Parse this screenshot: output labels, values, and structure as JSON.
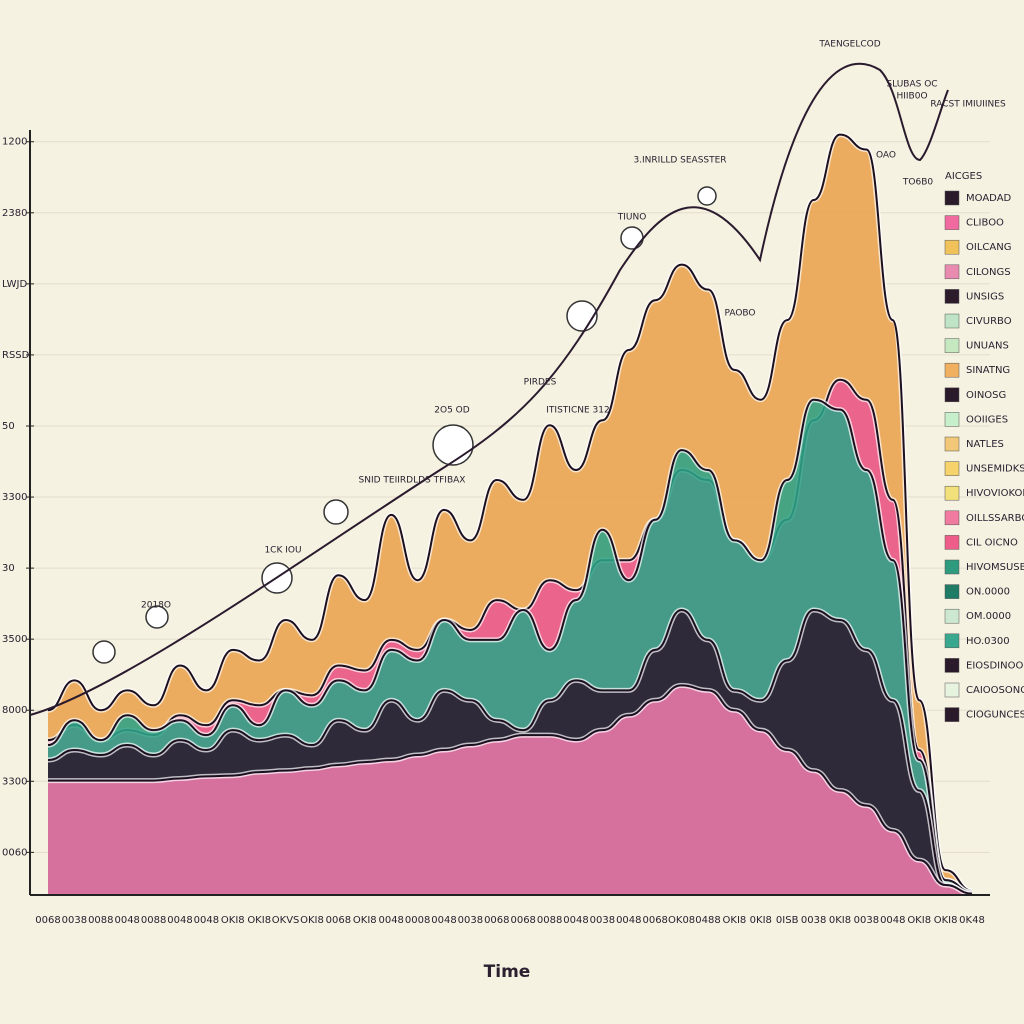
{
  "chart_data": {
    "type": "area",
    "x_label": "Time",
    "categories": [
      "0068",
      "0038",
      "0088",
      "0048",
      "0088",
      "0048",
      "0048",
      "OKI8",
      "OKI8",
      "OKVS",
      "OKI8",
      "0068",
      "OKI8",
      "0048",
      "0008",
      "0048",
      "0038",
      "0068",
      "0068",
      "0088",
      "0048",
      "0038",
      "0048",
      "0068",
      "OK08",
      "0488",
      "OKI8",
      "0KI8",
      "0ISB",
      "0038",
      "0KI8",
      "0038",
      "0048",
      "OKI8",
      "OKI8",
      "0K48"
    ],
    "ylim": [
      0.4,
      11.7
    ],
    "yticks": [
      {
        "value": 1,
        "label": "0060"
      },
      {
        "value": 2,
        "label": "3300"
      },
      {
        "value": 3,
        "label": "8000"
      },
      {
        "value": 4,
        "label": "3500"
      },
      {
        "value": 5,
        "label": "30"
      },
      {
        "value": 6,
        "label": "3300"
      },
      {
        "value": 7,
        "label": "50"
      },
      {
        "value": 8,
        "label": "RSSD"
      },
      {
        "value": 9,
        "label": "LWJD"
      },
      {
        "value": 10,
        "label": "2380"
      },
      {
        "value": 11,
        "label": "1200"
      }
    ],
    "grid": true,
    "series": [
      {
        "color": "#eaa24c",
        "values": [
          3.0,
          3.42,
          3.0,
          3.28,
          3.07,
          3.63,
          3.28,
          3.85,
          3.7,
          4.27,
          3.99,
          4.9,
          4.55,
          5.75,
          4.83,
          5.82,
          5.39,
          6.24,
          5.96,
          7.01,
          6.38,
          7.08,
          8.07,
          8.77,
          9.27,
          8.92,
          7.79,
          7.37,
          8.49,
          10.18,
          11.1,
          10.89,
          8.49,
          3.14,
          0.75,
          0.46
        ]
      },
      {
        "color": "#ea5a92",
        "values": [
          2.58,
          2.79,
          2.58,
          2.72,
          2.65,
          2.93,
          2.79,
          3.14,
          3.07,
          3.28,
          3.21,
          3.63,
          3.56,
          3.99,
          3.85,
          4.27,
          4.13,
          4.55,
          4.41,
          4.83,
          4.69,
          5.11,
          5.11,
          5.68,
          6.38,
          6.24,
          5.39,
          5.11,
          5.68,
          7.08,
          7.65,
          7.37,
          5.96,
          2.44,
          0.61,
          0.44
        ]
      },
      {
        "color": "#2fa387",
        "values": [
          2.51,
          2.86,
          2.58,
          2.93,
          2.72,
          2.86,
          2.65,
          3.07,
          2.79,
          3.28,
          3.07,
          3.42,
          3.28,
          3.85,
          3.7,
          4.27,
          3.99,
          3.99,
          4.41,
          3.85,
          4.55,
          5.54,
          4.83,
          5.68,
          6.66,
          6.38,
          5.39,
          5.11,
          6.24,
          7.37,
          7.23,
          6.38,
          5.11,
          2.3,
          0.61,
          0.44
        ]
      },
      {
        "color": "#2b1a2e",
        "values": [
          2.3,
          2.44,
          2.37,
          2.51,
          2.37,
          2.58,
          2.44,
          2.72,
          2.58,
          2.65,
          2.51,
          2.86,
          2.72,
          3.14,
          2.86,
          3.28,
          3.14,
          2.86,
          2.72,
          3.14,
          3.42,
          3.28,
          3.28,
          3.85,
          4.41,
          3.99,
          3.28,
          3.14,
          3.7,
          4.41,
          4.27,
          3.85,
          3.14,
          1.87,
          0.54,
          0.42
        ]
      },
      {
        "color": "#ee7bab",
        "values": [
          2.01,
          2.01,
          2.01,
          2.01,
          2.01,
          2.04,
          2.07,
          2.08,
          2.13,
          2.15,
          2.18,
          2.23,
          2.27,
          2.3,
          2.37,
          2.44,
          2.51,
          2.58,
          2.65,
          2.65,
          2.58,
          2.72,
          2.93,
          3.14,
          3.35,
          3.28,
          3.0,
          2.72,
          2.44,
          2.15,
          1.87,
          1.66,
          1.31,
          0.89,
          0.54,
          0.42
        ]
      }
    ],
    "legend_title": "AICGES",
    "legend": [
      {
        "name": "MOADAD",
        "color": "#2a1a2a"
      },
      {
        "name": "CLIBOO",
        "color": "#f06aa0"
      },
      {
        "name": "OILCANG",
        "color": "#f2c25a"
      },
      {
        "name": "CILONGS",
        "color": "#e98ab0"
      },
      {
        "name": "UNSIGS",
        "color": "#2b1b2b"
      },
      {
        "name": "CIVURBO",
        "color": "#bfe3c5"
      },
      {
        "name": "UNUANS",
        "color": "#c5e8c0"
      },
      {
        "name": "SINATNG",
        "color": "#f0b060"
      },
      {
        "name": "OINOSG",
        "color": "#2a1a2a"
      },
      {
        "name": "OOIIGES",
        "color": "#c8efcb"
      },
      {
        "name": "NATLES",
        "color": "#f2c878"
      },
      {
        "name": "UNSEMIDKS",
        "color": "#f5d36a"
      },
      {
        "name": "HIVOVIOKOBO",
        "color": "#f2e07a"
      },
      {
        "name": "OILLSSARBO",
        "color": "#f07aa0"
      },
      {
        "name": "CIL OICNO",
        "color": "#ee5c8a"
      },
      {
        "name": "HIVOMSUSBUSA",
        "color": "#2e9a7e"
      },
      {
        "name": "ON.0000",
        "color": "#1f7a66"
      },
      {
        "name": "OM.0000",
        "color": "#cde8d0"
      },
      {
        "name": "HO.0300",
        "color": "#3aa88e"
      },
      {
        "name": "EIOSDINOO",
        "color": "#2a1a2a"
      },
      {
        "name": "CAIOOSONO",
        "color": "#e6f3df"
      },
      {
        "name": "CIOGUNCES",
        "color": "#2a1a2a"
      }
    ],
    "annotations": [
      "TAENGELCOD",
      "SLUBAS OC",
      "HIIB0O",
      "RACST IMIUIINES",
      "OAO",
      "TO6B0",
      "3.INRILLD SEASSTER",
      "TIUNO",
      "PAOBO",
      "PIRDES",
      "ITISTICNE 312",
      "2O5 OD",
      "SNID TEIIRDLDS TFIBAX",
      "1CK IOU",
      "2018O"
    ]
  }
}
